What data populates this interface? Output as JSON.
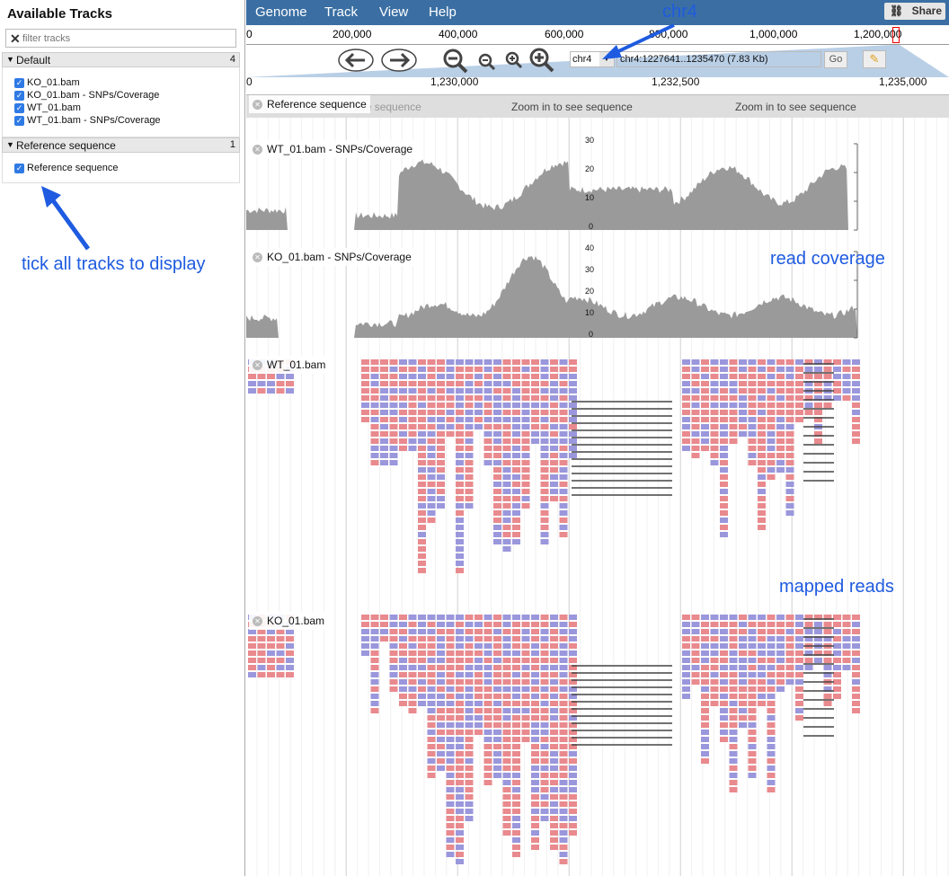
{
  "left_panel": {
    "title": "Available Tracks",
    "filter_placeholder": "filter tracks",
    "categories": [
      {
        "name": "Default",
        "count": "4",
        "tracks": [
          "KO_01.bam",
          "KO_01.bam - SNPs/Coverage",
          "WT_01.bam",
          "WT_01.bam - SNPs/Coverage"
        ]
      },
      {
        "name": "Reference sequence",
        "count": "1",
        "tracks": [
          "Reference sequence"
        ]
      }
    ],
    "annotation": "tick all tracks to display"
  },
  "menubar": {
    "items": [
      "Genome",
      "Track",
      "View",
      "Help"
    ],
    "share_label": "Share"
  },
  "overview": {
    "ticks": [
      "0",
      "200,000",
      "400,000",
      "600,000",
      "800,000",
      "1,000,000",
      "1,200,000"
    ]
  },
  "navigation": {
    "reference": "chr4",
    "location": "chr4:1227641..1235470 (7.83 Kb)",
    "go_label": "Go"
  },
  "scale": {
    "ticks": [
      "0",
      "1,230,000",
      "1,232,500",
      "1,235,000"
    ]
  },
  "tracks": {
    "reference_label": "Reference sequence",
    "zoom_text": "Zoom in to see sequence",
    "wt_cov_label": "WT_01.bam - SNPs/Coverage",
    "wt_cov_ticks": [
      "30",
      "20",
      "10",
      "0"
    ],
    "ko_cov_label": "KO_01.bam - SNPs/Coverage",
    "ko_cov_ticks": [
      "40",
      "30",
      "20",
      "10",
      "0"
    ],
    "wt_reads_label": "WT_01.bam",
    "ko_reads_label": "KO_01.bam"
  },
  "annotations": {
    "chr4": "chr4",
    "read_coverage": "read coverage",
    "mapped_reads": "mapped reads"
  },
  "colors": {
    "menubar": "#3b6fa3",
    "coverage": "#9a9a9a",
    "read_forward": "#e98a8e",
    "read_reverse": "#9b97dc",
    "annotation": "#1e5be0"
  }
}
